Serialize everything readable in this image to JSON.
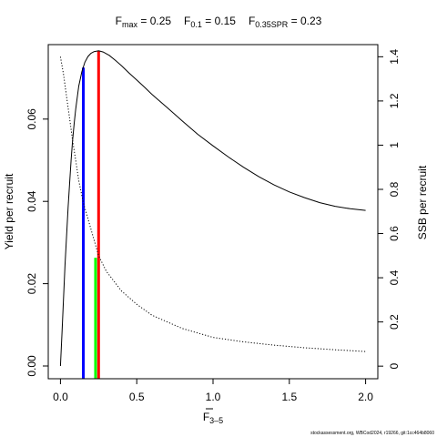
{
  "chart_data": {
    "type": "line",
    "title_parts": [
      {
        "main": "F",
        "sub": "max",
        "value": " = 0.25"
      },
      {
        "main": "F",
        "sub": "0.1",
        "value": " = 0.15"
      },
      {
        "main": "F",
        "sub": "0.35SPR",
        "value": " = 0.23"
      }
    ],
    "xlabel": {
      "main": "F",
      "sub": "3–5"
    },
    "ylabel_left": "Yield per recruit",
    "ylabel_right": "SSB per recruit",
    "footer": "stockassessment.org, WBCod2024, r19266, git:1cc464b8060",
    "xlim": [
      -0.08,
      2.08
    ],
    "ylim_left": [
      -0.0031,
      0.0781
    ],
    "ylim_right": [
      -0.057,
      1.455
    ],
    "x_ticks": [
      {
        "v": 0.0,
        "label": "0.0"
      },
      {
        "v": 0.5,
        "label": "0.5"
      },
      {
        "v": 1.0,
        "label": "1.0"
      },
      {
        "v": 1.5,
        "label": "1.5"
      },
      {
        "v": 2.0,
        "label": "2.0"
      }
    ],
    "y_left_ticks": [
      {
        "v": 0.0,
        "label": "0.00"
      },
      {
        "v": 0.02,
        "label": "0.02"
      },
      {
        "v": 0.04,
        "label": "0.04"
      },
      {
        "v": 0.06,
        "label": "0.06"
      }
    ],
    "y_right_ticks": [
      {
        "v": 0.0,
        "label": "0"
      },
      {
        "v": 0.2,
        "label": "0.2"
      },
      {
        "v": 0.4,
        "label": "0.4"
      },
      {
        "v": 0.6,
        "label": "0.6"
      },
      {
        "v": 0.8,
        "label": "0.8"
      },
      {
        "v": 1.0,
        "label": "1"
      },
      {
        "v": 1.2,
        "label": "1.2"
      },
      {
        "v": 1.4,
        "label": "1.4"
      }
    ],
    "series": [
      {
        "axis": "left",
        "style": "solid",
        "color": "#000000",
        "x": [
          0,
          0.01,
          0.02,
          0.03,
          0.04,
          0.05,
          0.06,
          0.07,
          0.08,
          0.09,
          0.1,
          0.12,
          0.14,
          0.16,
          0.18,
          0.2,
          0.22,
          0.25,
          0.28,
          0.32,
          0.36,
          0.4,
          0.45,
          0.5,
          0.55,
          0.6,
          0.7,
          0.8,
          0.9,
          1.0,
          1.1,
          1.2,
          1.3,
          1.4,
          1.5,
          1.6,
          1.7,
          1.8,
          1.9,
          2.0
        ],
        "values": [
          0.0,
          0.008,
          0.0165,
          0.0245,
          0.0315,
          0.0385,
          0.0445,
          0.05,
          0.055,
          0.059,
          0.0625,
          0.068,
          0.0715,
          0.0738,
          0.0752,
          0.076,
          0.0764,
          0.0766,
          0.0763,
          0.0755,
          0.0743,
          0.073,
          0.0712,
          0.0695,
          0.0678,
          0.066,
          0.0628,
          0.0595,
          0.0563,
          0.0535,
          0.0508,
          0.0483,
          0.046,
          0.044,
          0.0423,
          0.0409,
          0.0397,
          0.0388,
          0.0382,
          0.0378
        ]
      },
      {
        "axis": "right",
        "style": "dotted",
        "color": "#000000",
        "x": [
          0,
          0.02,
          0.04,
          0.06,
          0.08,
          0.1,
          0.12,
          0.15,
          0.2,
          0.25,
          0.3,
          0.4,
          0.5,
          0.6,
          0.7,
          0.8,
          1.0,
          1.2,
          1.4,
          1.6,
          1.8,
          2.0
        ],
        "values": [
          1.4,
          1.32,
          1.22,
          1.12,
          1.02,
          0.93,
          0.84,
          0.74,
          0.62,
          0.5,
          0.43,
          0.34,
          0.28,
          0.23,
          0.2,
          0.17,
          0.13,
          0.11,
          0.095,
          0.083,
          0.074,
          0.066
        ]
      }
    ],
    "reference_lines": [
      {
        "name": "F0.1",
        "x": 0.15,
        "y_top": 0.0725,
        "axis": "left",
        "color": "#0000ff"
      },
      {
        "name": "Fmax",
        "x": 0.25,
        "y_top": 0.0766,
        "axis": "left",
        "color": "#ff0000"
      },
      {
        "name": "F0.35SPR",
        "x": 0.23,
        "y_top": 0.0263,
        "axis": "left",
        "color": "#00ff00"
      }
    ]
  }
}
